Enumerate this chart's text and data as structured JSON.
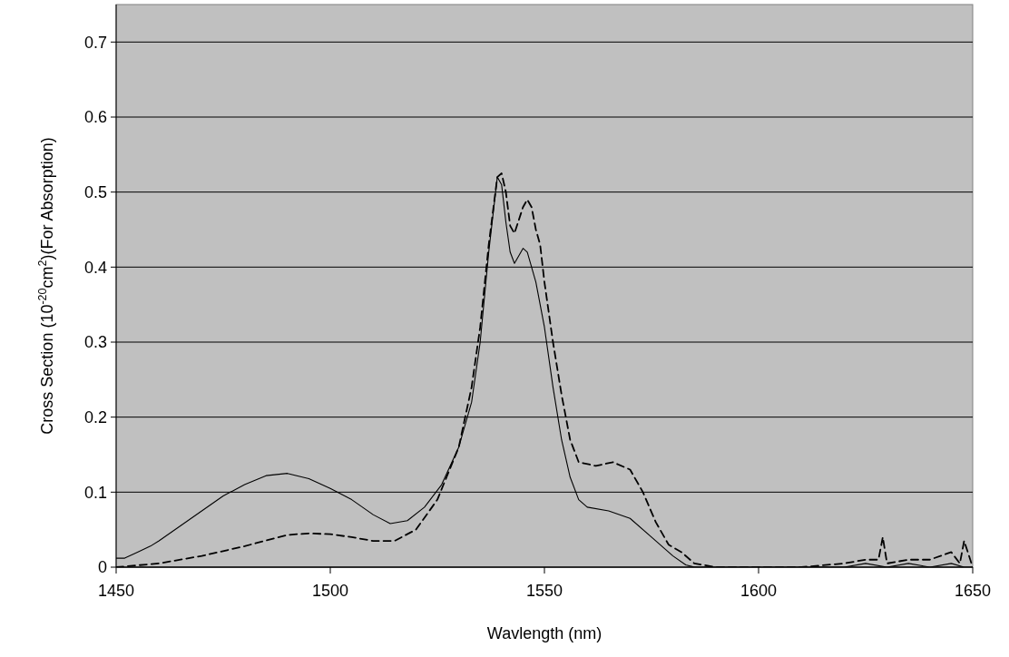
{
  "chart_data": {
    "type": "line",
    "xlabel": "Wavlength (nm)",
    "ylabel": "Cross Section (10$^{-20}$cm$^{2}$)(For Absorption)",
    "xlim": [
      1450,
      1650
    ],
    "xticks": [
      1450,
      1500,
      1550,
      1600,
      1650
    ],
    "ylim": [
      0,
      0.75
    ],
    "yticks": [
      0,
      0.1,
      0.2,
      0.3,
      0.4,
      0.5,
      0.6,
      0.7
    ],
    "grid": "y",
    "series": [
      {
        "color": "#000000",
        "line_style": "solid",
        "x": [
          1450,
          1452,
          1455,
          1458,
          1460,
          1465,
          1470,
          1475,
          1480,
          1485,
          1490,
          1495,
          1500,
          1505,
          1510,
          1514,
          1518,
          1522,
          1526,
          1530,
          1533,
          1535,
          1537,
          1539,
          1540,
          1541,
          1542,
          1543,
          1545,
          1546,
          1548,
          1550,
          1552,
          1554,
          1556,
          1558,
          1560,
          1565,
          1570,
          1575,
          1580,
          1583,
          1585,
          1600,
          1620,
          1625,
          1630,
          1635,
          1640,
          1645,
          1648,
          1650
        ],
        "values": [
          0.012,
          0.012,
          0.02,
          0.028,
          0.035,
          0.055,
          0.075,
          0.095,
          0.11,
          0.122,
          0.125,
          0.118,
          0.105,
          0.09,
          0.07,
          0.058,
          0.062,
          0.08,
          0.11,
          0.16,
          0.22,
          0.3,
          0.42,
          0.52,
          0.51,
          0.46,
          0.42,
          0.405,
          0.425,
          0.42,
          0.38,
          0.32,
          0.24,
          0.17,
          0.12,
          0.09,
          0.08,
          0.075,
          0.065,
          0.04,
          0.015,
          0.003,
          0,
          0,
          0,
          0.005,
          0,
          0.005,
          0,
          0.005,
          0,
          0
        ]
      },
      {
        "color": "#000000",
        "line_style": "dashed",
        "x": [
          1450,
          1460,
          1470,
          1480,
          1490,
          1495,
          1500,
          1505,
          1510,
          1515,
          1520,
          1525,
          1530,
          1533,
          1535,
          1537,
          1539,
          1540,
          1541,
          1542,
          1543,
          1545,
          1546,
          1547,
          1548,
          1549,
          1550,
          1552,
          1554,
          1556,
          1558,
          1562,
          1566,
          1570,
          1573,
          1576,
          1579,
          1582,
          1585,
          1590,
          1600,
          1610,
          1620,
          1625,
          1628,
          1629,
          1630,
          1635,
          1640,
          1645,
          1647,
          1648,
          1650
        ],
        "values": [
          0,
          0.005,
          0.015,
          0.028,
          0.043,
          0.045,
          0.044,
          0.04,
          0.035,
          0.035,
          0.05,
          0.09,
          0.16,
          0.24,
          0.32,
          0.43,
          0.52,
          0.525,
          0.5,
          0.455,
          0.445,
          0.48,
          0.49,
          0.48,
          0.45,
          0.43,
          0.38,
          0.3,
          0.23,
          0.17,
          0.14,
          0.135,
          0.14,
          0.13,
          0.1,
          0.06,
          0.03,
          0.02,
          0.005,
          0,
          0,
          0,
          0.005,
          0.01,
          0.01,
          0.04,
          0.005,
          0.01,
          0.01,
          0.02,
          0.005,
          0.035,
          0
        ]
      }
    ]
  }
}
